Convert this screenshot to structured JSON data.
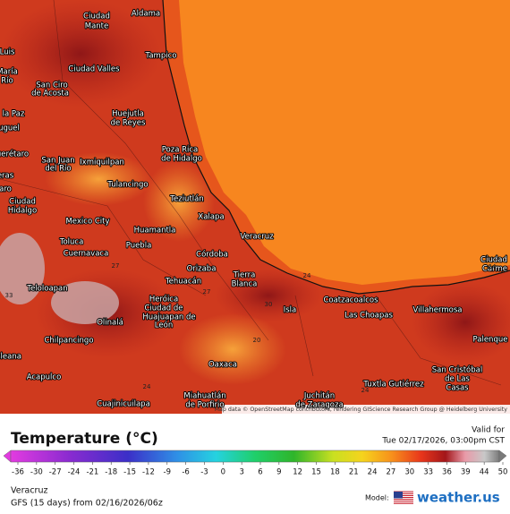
{
  "map": {
    "labels": [
      "Ciudad",
      "Mante",
      "Aldama",
      "Tampico",
      "Luis",
      "Ciudad Valles",
      "María",
      "Río",
      "San Ciro",
      "de Acosta",
      "la Paz",
      "Huejutla",
      "de Reyes",
      "uguel",
      "Poza Rica",
      "de Hidalgo",
      "uerétaro",
      "San Juan",
      "del Río",
      "Ixmiquilpan",
      "eras",
      "Tulancingo",
      "Teziutlán",
      "aro",
      "Ciudad",
      "Hidalgo",
      "Xalapa",
      "Mexico City",
      "Huamantla",
      "Veracruz",
      "Toluca",
      "Puebla",
      "Cuernavaca",
      "Córdoba",
      "Orizaba",
      "Tierra",
      "Blanca",
      "Teloloapan",
      "Tehuacán",
      "Heróica",
      "Ciudad de",
      "Huajuapan de",
      "León",
      "Olinalá",
      "Isla",
      "Coatzacoalcos",
      "Las Choapas",
      "Villahermosa",
      "Ciudad",
      "Carme",
      "Chilpancingo",
      "Palenque",
      "Oaxaca",
      "San Cristóbal",
      "de Las",
      "Casas",
      "Acapulco",
      "Tuxtla Gutiérrez",
      "Miahuatlán",
      "de Porfirio",
      "Juchitán",
      "de Zaragoza",
      "Cuajinicuilapa",
      "sleana"
    ],
    "contour_labels": [
      24,
      24,
      20,
      27,
      24,
      27,
      33,
      24,
      30
    ],
    "attribution": "Map data © OpenStreetMap contributors, rendering GIScience Research Group @ Heidelberg University"
  },
  "legend": {
    "title": "Temperature (°C)",
    "valid_label": "Valid for",
    "valid_time": "Tue 02/17/2026, 03:00pm CST",
    "ticks": [
      -36,
      -30,
      -27,
      -24,
      -21,
      -18,
      -15,
      -12,
      -9,
      -6,
      -3,
      0,
      3,
      6,
      9,
      12,
      15,
      18,
      21,
      24,
      27,
      30,
      33,
      36,
      39,
      44,
      50
    ]
  },
  "footer": {
    "location": "Veracruz",
    "run": "GFS (15 days) from 02/16/2026/06z",
    "model_label": "Model:",
    "brand": "weather.us"
  }
}
